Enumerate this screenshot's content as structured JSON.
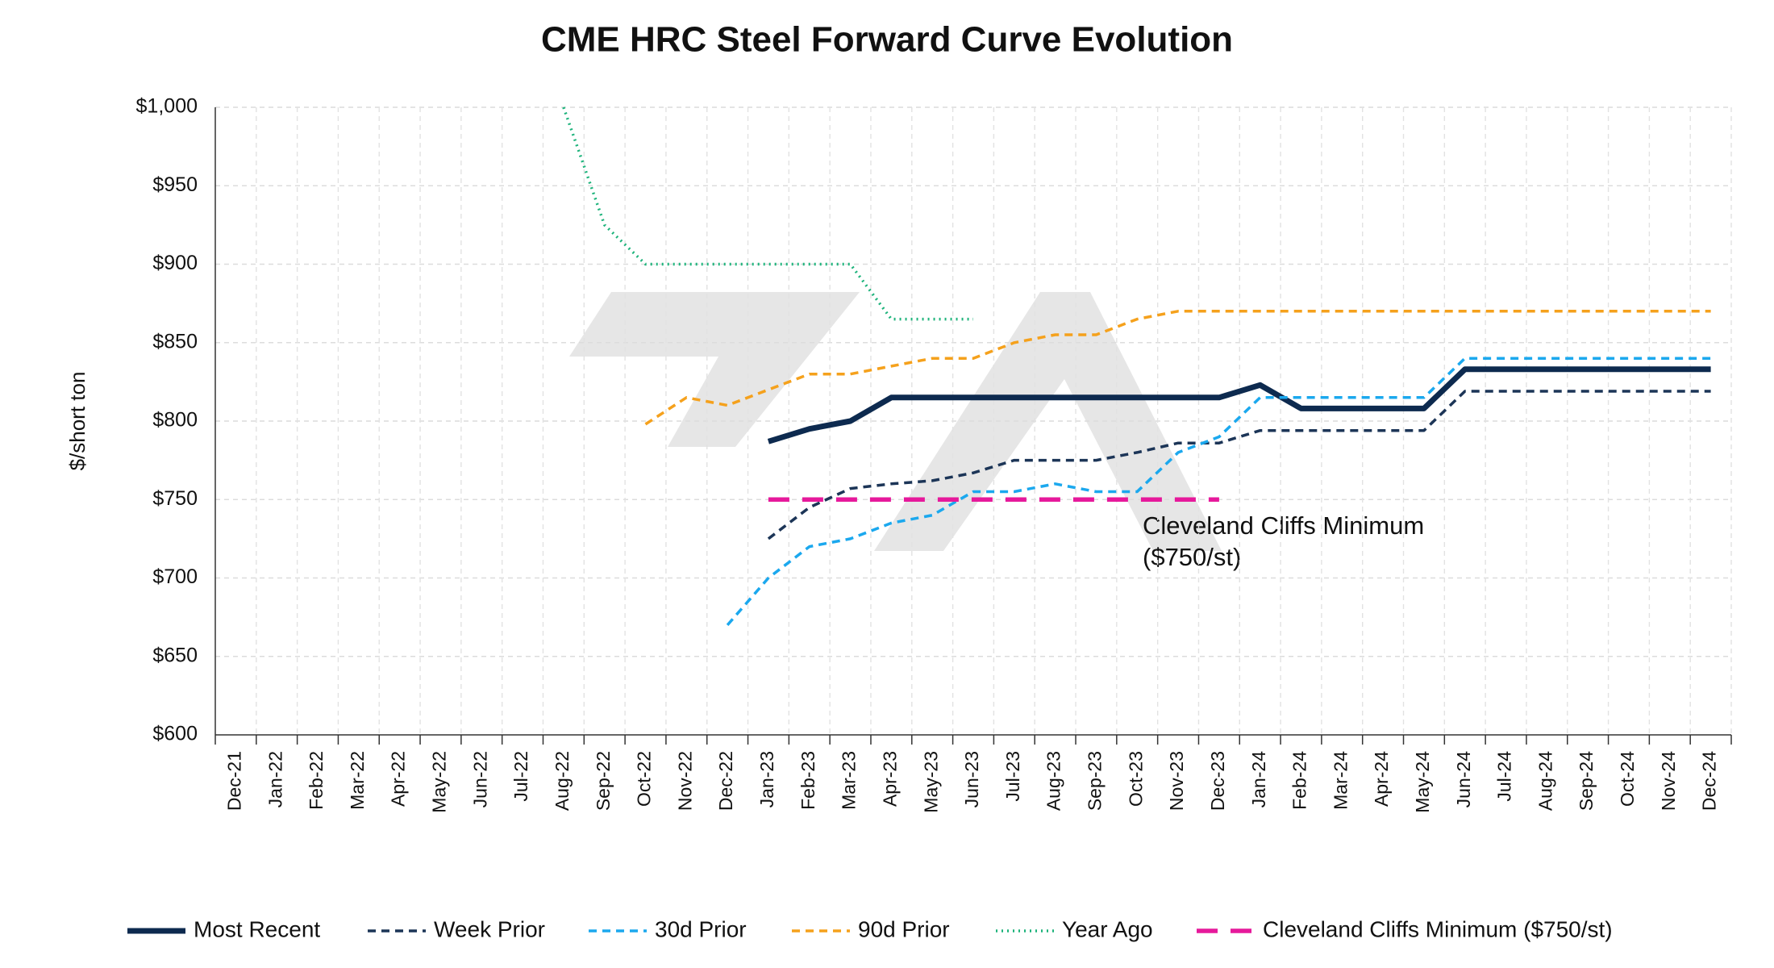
{
  "chart_data": {
    "type": "line",
    "title": "CME HRC Steel Forward Curve Evolution",
    "ylabel": "$/short ton",
    "annotation": [
      "Cleveland Cliffs Minimum",
      "($750/st)"
    ],
    "categories": [
      "Dec-21",
      "Jan-22",
      "Feb-22",
      "Mar-22",
      "Apr-22",
      "May-22",
      "Jun-22",
      "Jul-22",
      "Aug-22",
      "Sep-22",
      "Oct-22",
      "Nov-22",
      "Dec-22",
      "Jan-23",
      "Feb-23",
      "Mar-23",
      "Apr-23",
      "May-23",
      "Jun-23",
      "Jul-23",
      "Aug-23",
      "Sep-23",
      "Oct-23",
      "Nov-23",
      "Dec-23",
      "Jan-24",
      "Feb-24",
      "Mar-24",
      "Apr-24",
      "May-24",
      "Jun-24",
      "Jul-24",
      "Aug-24",
      "Sep-24",
      "Oct-24",
      "Nov-24",
      "Dec-24"
    ],
    "ylim": [
      600,
      1000
    ],
    "yticks": [
      {
        "value": 600,
        "label": "$600"
      },
      {
        "value": 650,
        "label": "$650"
      },
      {
        "value": 700,
        "label": "$700"
      },
      {
        "value": 750,
        "label": "$750"
      },
      {
        "value": 800,
        "label": "$800"
      },
      {
        "value": 850,
        "label": "$850"
      },
      {
        "value": 900,
        "label": "$900"
      },
      {
        "value": 950,
        "label": "$950"
      },
      {
        "value": 1000,
        "label": "$1,000"
      }
    ],
    "grid": true,
    "legend": "bottom",
    "series": [
      {
        "name": "Most Recent",
        "color": "#0d2a4f",
        "style": "solid",
        "values": [
          null,
          null,
          null,
          null,
          null,
          null,
          null,
          null,
          null,
          null,
          null,
          null,
          null,
          787,
          795,
          800,
          815,
          815,
          815,
          815,
          815,
          815,
          815,
          815,
          815,
          823,
          808,
          808,
          808,
          808,
          833,
          833,
          833,
          833,
          833,
          833,
          833
        ]
      },
      {
        "name": "Week Prior",
        "color": "#1c3557",
        "style": "dashed",
        "values": [
          null,
          null,
          null,
          null,
          null,
          null,
          null,
          null,
          null,
          null,
          null,
          null,
          null,
          725,
          745,
          757,
          760,
          762,
          767,
          775,
          775,
          775,
          780,
          786,
          786,
          794,
          794,
          794,
          794,
          794,
          819,
          819,
          819,
          819,
          819,
          819,
          819
        ]
      },
      {
        "name": "30d Prior",
        "color": "#1ba8ee",
        "style": "dashed",
        "values": [
          null,
          null,
          null,
          null,
          null,
          null,
          null,
          null,
          null,
          null,
          null,
          null,
          670,
          700,
          720,
          725,
          735,
          740,
          755,
          755,
          760,
          755,
          755,
          780,
          790,
          815,
          815,
          815,
          815,
          815,
          840,
          840,
          840,
          840,
          840,
          840,
          840
        ]
      },
      {
        "name": "90d Prior",
        "color": "#f5a11c",
        "style": "dashed",
        "values": [
          null,
          null,
          null,
          null,
          null,
          null,
          null,
          null,
          null,
          null,
          798,
          815,
          810,
          820,
          830,
          830,
          835,
          840,
          840,
          850,
          855,
          855,
          865,
          870,
          870,
          870,
          870,
          870,
          870,
          870,
          870,
          870,
          870,
          870,
          870,
          870,
          870
        ]
      },
      {
        "name": "Year Ago",
        "color": "#1db37b",
        "style": "dotted",
        "values": [
          null,
          null,
          null,
          null,
          null,
          null,
          null,
          null,
          1000,
          925,
          900,
          900,
          900,
          900,
          900,
          900,
          865,
          865,
          865,
          null,
          null,
          null,
          null,
          null,
          null,
          null,
          null,
          null,
          null,
          null,
          null,
          null,
          null,
          null,
          null,
          null,
          null
        ]
      },
      {
        "name": "Cleveland Cliffs Minimum ($750/st)",
        "color": "#e6199b",
        "style": "longdash",
        "values": [
          null,
          null,
          null,
          null,
          null,
          null,
          null,
          null,
          null,
          null,
          null,
          null,
          null,
          750,
          750,
          750,
          750,
          750,
          750,
          750,
          750,
          750,
          750,
          750,
          750,
          null,
          null,
          null,
          null,
          null,
          null,
          null,
          null,
          null,
          null,
          null,
          null
        ]
      }
    ]
  }
}
